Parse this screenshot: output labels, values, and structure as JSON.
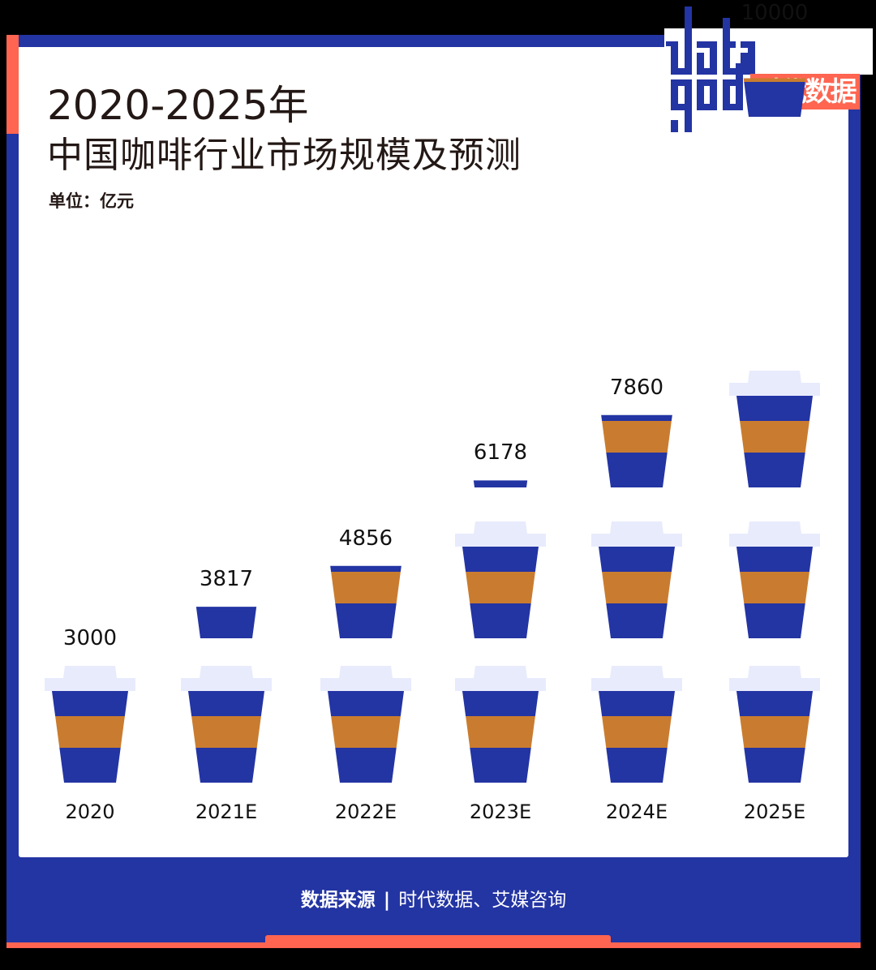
{
  "header": {
    "title_line1": "2020-2025年",
    "title_line2": "中国咖啡行业市场规模及预测",
    "unit": "单位：亿元"
  },
  "logo": {
    "text_en": "data good",
    "text_cn": "时代数据"
  },
  "footer": {
    "source_label": "数据来源",
    "separator": "|",
    "source_value": "时代数据、艾媒咨询"
  },
  "colors": {
    "frame_blue": "#2334a3",
    "accent_red": "#ff6550",
    "cup_blue": "#2334a3",
    "cup_orange": "#c97c2f",
    "lid": "#e8ebfc",
    "text": "#231815"
  },
  "chart_data": {
    "type": "bar",
    "title": "2020-2025年 中国咖啡行业市场规模及预测",
    "unit": "亿元",
    "xlabel": "",
    "ylabel": "单位：亿元",
    "categories": [
      "2020",
      "2021E",
      "2022E",
      "2023E",
      "2024E",
      "2025E"
    ],
    "values": [
      3000,
      3817,
      4856,
      6178,
      7860,
      10000
    ],
    "value_labels": [
      "3000",
      "3817",
      "4856",
      "6178",
      "7860",
      "10000"
    ],
    "encoding": "pictogram: one full coffee cup ≈ 3000 亿元; partial cups show remainder",
    "cups": [
      1,
      1.27,
      1.62,
      2.06,
      2.62,
      3.33
    ],
    "grid": false,
    "legend": null
  }
}
